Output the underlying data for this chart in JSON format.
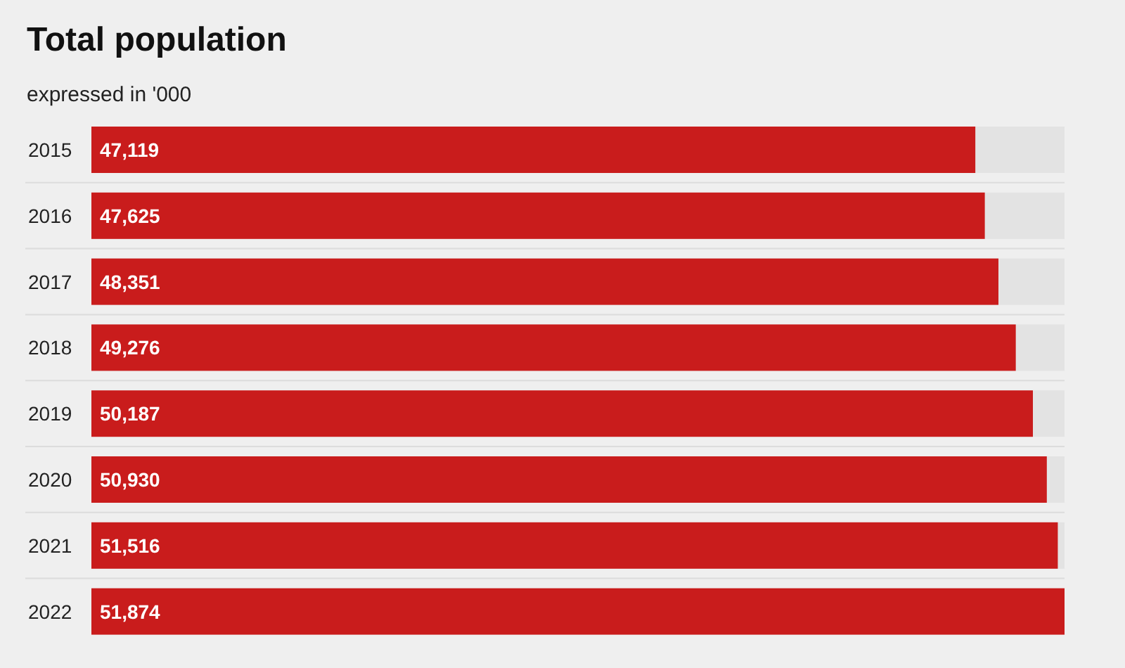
{
  "chart_data": {
    "type": "bar",
    "orientation": "horizontal",
    "title": "Total population",
    "subtitle": "expressed in '000",
    "categories": [
      "2015",
      "2016",
      "2017",
      "2018",
      "2019",
      "2020",
      "2021",
      "2022"
    ],
    "values": [
      47119,
      47625,
      48351,
      49276,
      50187,
      50930,
      51516,
      51874
    ],
    "value_labels": [
      "47,119",
      "47,625",
      "48,351",
      "49,276",
      "50,187",
      "50,930",
      "51,516",
      "51,874"
    ],
    "color": "#c91c1c"
  }
}
